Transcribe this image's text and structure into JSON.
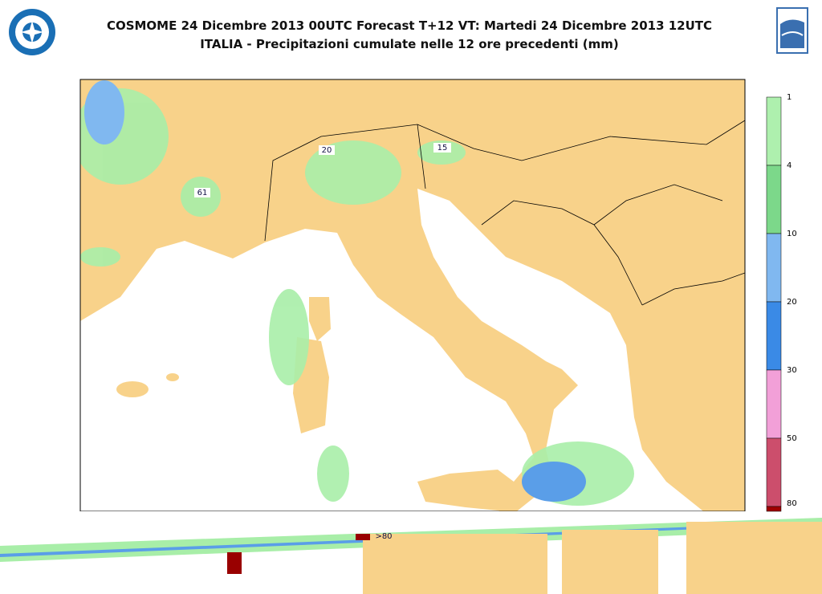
{
  "header": {
    "title": "COSMOME 24 Dicembre 2013 00UTC Forecast T+12 VT: Martedi 24 Dicembre 2013 12UTC",
    "subtitle": "ITALIA - Precipitazioni cumulate nelle 12 ore precedenti (mm)"
  },
  "legend": {
    "levels": [
      "1",
      "4",
      "10",
      "20",
      "30",
      "50",
      "80"
    ]
  },
  "map_labels": [
    "61",
    "20",
    "15",
    ">80"
  ]
}
